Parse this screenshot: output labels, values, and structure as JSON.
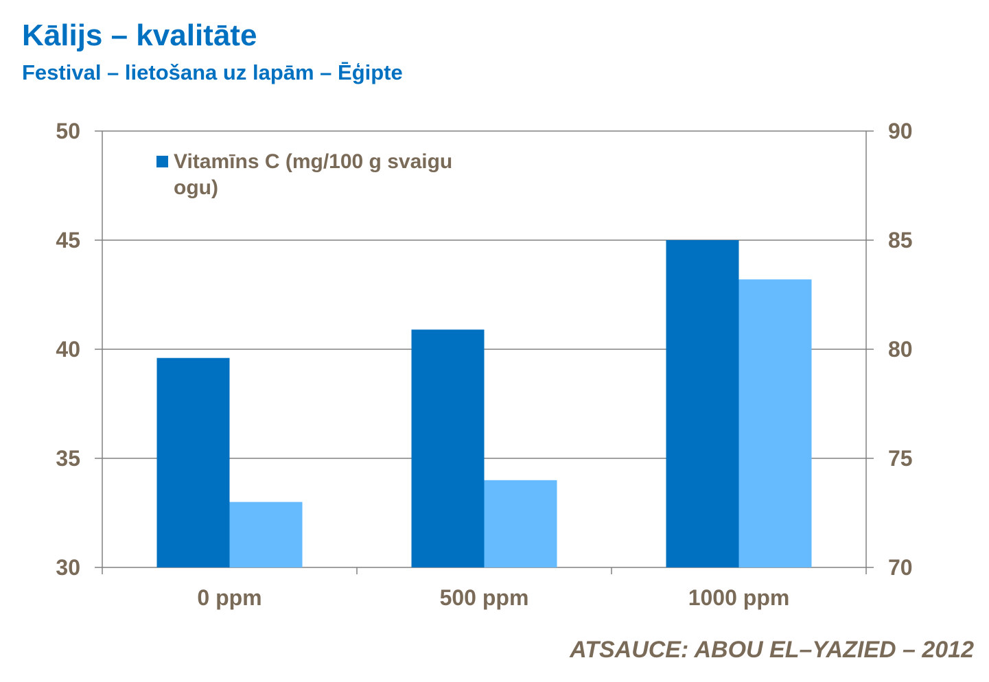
{
  "header": {
    "title": "Kālijs – kvalitāte",
    "subtitle": "Festival – lietošana uz lapām – Ēģipte"
  },
  "footer": {
    "source": "ATSAUCE: ABOU EL–YAZIED – 2012"
  },
  "colors": {
    "primary_series": "#0070c0",
    "secondary_series": "#66bbff",
    "axis": "#7a6a58",
    "gridline": "#808080"
  },
  "chart_data": {
    "type": "bar",
    "title": "",
    "categories": [
      "0 ppm",
      "500 ppm",
      "1000 ppm"
    ],
    "series": [
      {
        "name": "Vitamīns C (mg/100 g svaigu ogu)",
        "axis": "left",
        "values": [
          39.6,
          40.9,
          45.0
        ]
      },
      {
        "name": "",
        "axis": "right",
        "values": [
          73.0,
          74.0,
          83.2
        ]
      }
    ],
    "legend_lines": [
      "Vitamīns C (mg/100 g svaigu",
      "ogu)"
    ],
    "y_left": {
      "range": [
        30,
        50
      ],
      "ticks": [
        "30",
        "35",
        "40",
        "45",
        "50"
      ]
    },
    "y_right": {
      "range": [
        70,
        90
      ],
      "ticks": [
        "70",
        "75",
        "80",
        "85",
        "90"
      ]
    },
    "grid": true,
    "legend_position": "top-left"
  }
}
